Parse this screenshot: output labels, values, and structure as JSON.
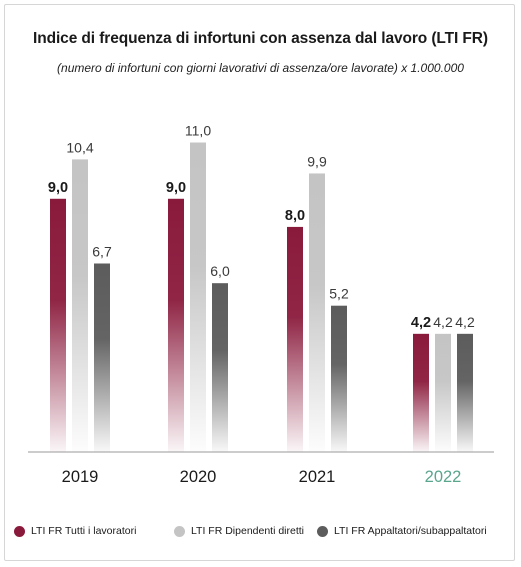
{
  "title": "Indice di frequenza di infortuni con assenza dal lavoro (LTI FR)",
  "subtitle": "(numero di infortuni con giorni lavorativi di assenza/ore lavorate) x 1.000.000",
  "colors": {
    "series_0": "#8a1a3c",
    "series_1": "#c4c4c4",
    "series_2": "#5c5c5c",
    "highlight_year": "#5aa58e",
    "axis": "#9a9a9a"
  },
  "chart_data": {
    "type": "bar",
    "title": "Indice di frequenza di infortuni con assenza dal lavoro (LTI FR)",
    "subtitle": "(numero di infortuni con giorni lavorativi di assenza/ore lavorate) x 1.000.000",
    "categories": [
      "2019",
      "2020",
      "2021",
      "2022"
    ],
    "highlighted_category": "2022",
    "series": [
      {
        "name": "LTI FR Tutti i lavoratori",
        "values": [
          9.0,
          9.0,
          8.0,
          4.2
        ],
        "labels": [
          "9,0",
          "9,0",
          "8,0",
          "4,2"
        ],
        "bold_labels": true
      },
      {
        "name": "LTI FR Dipendenti diretti",
        "values": [
          10.4,
          11.0,
          9.9,
          4.2
        ],
        "labels": [
          "10,4",
          "11,0",
          "9,9",
          "4,2"
        ],
        "bold_labels": false
      },
      {
        "name": "LTI FR Appaltatori/subappaltatori",
        "values": [
          6.7,
          6.0,
          5.2,
          4.2
        ],
        "labels": [
          "6,7",
          "6,0",
          "5,2",
          "4,2"
        ],
        "bold_labels": false
      }
    ],
    "ylim": [
      0,
      11.8
    ],
    "grid": false,
    "bar_style": "vertical gradient fading to white at baseline",
    "legend": "bottom"
  },
  "legend": [
    {
      "label": "LTI FR Tutti i lavoratori"
    },
    {
      "label": "LTI FR Dipendenti diretti"
    },
    {
      "label": "LTI FR Appaltatori/subappaltatori"
    }
  ]
}
